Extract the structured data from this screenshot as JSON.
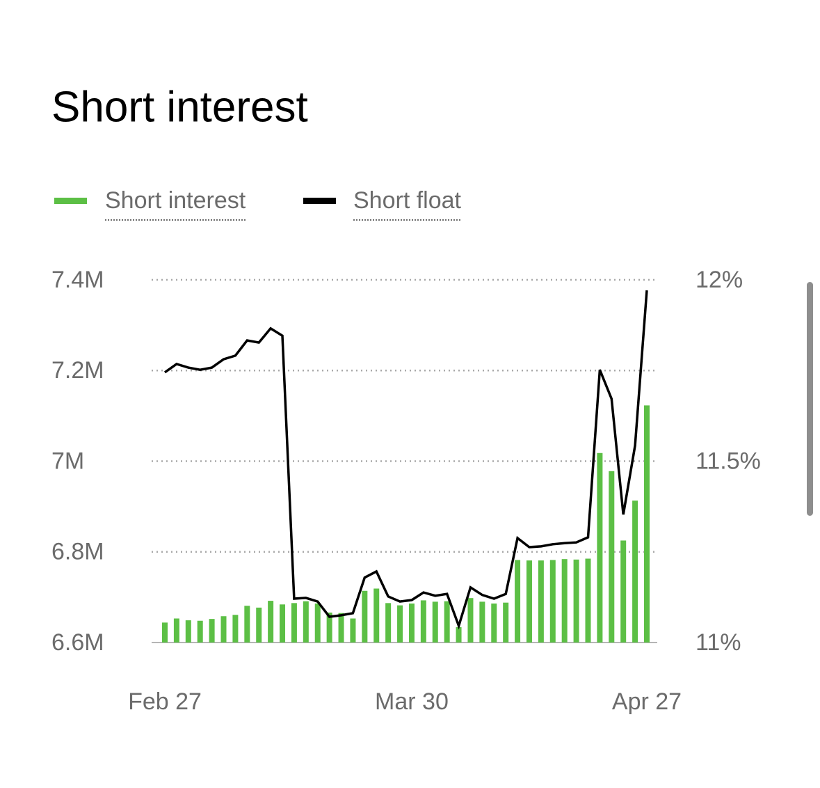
{
  "chart_data": {
    "type": "bar",
    "title": "Short interest",
    "categories": [
      "Feb 27",
      null,
      null,
      null,
      null,
      null,
      null,
      null,
      null,
      null,
      null,
      null,
      null,
      null,
      null,
      null,
      null,
      null,
      null,
      null,
      null,
      "Mar 30",
      null,
      null,
      null,
      null,
      null,
      null,
      null,
      null,
      null,
      null,
      null,
      null,
      null,
      null,
      null,
      null,
      null,
      null,
      null,
      "Apr 27"
    ],
    "series": [
      {
        "name": "Short interest",
        "type": "bar",
        "color": "#5cbf45",
        "values": [
          6644000,
          6653000,
          6649000,
          6648000,
          6652000,
          6658000,
          6661000,
          6681000,
          6677000,
          6692000,
          6684000,
          6687000,
          6691000,
          6686000,
          6666000,
          6665000,
          6653000,
          6714000,
          6719000,
          6687000,
          6682000,
          6686000,
          6693000,
          6690000,
          6691000,
          6634000,
          6698000,
          6690000,
          6686000,
          6688000,
          6782000,
          6781000,
          6781000,
          6782000,
          6784000,
          6783000,
          6785000,
          7018000,
          6978000,
          6825000,
          6913000,
          7123000
        ]
      },
      {
        "name": "Short float",
        "type": "line",
        "color": "#000000",
        "axis": "y2",
        "values": [
          11.745,
          11.768,
          11.758,
          11.752,
          11.758,
          11.781,
          11.791,
          11.833,
          11.827,
          11.866,
          11.846,
          11.121,
          11.123,
          11.113,
          11.071,
          11.075,
          11.081,
          11.179,
          11.196,
          11.127,
          11.113,
          11.117,
          11.138,
          11.129,
          11.134,
          11.046,
          11.152,
          11.131,
          11.121,
          11.134,
          11.288,
          11.263,
          11.265,
          11.271,
          11.274,
          11.276,
          11.29,
          11.752,
          11.672,
          11.353,
          11.543,
          11.971
        ]
      }
    ],
    "ylim": [
      6600000,
      7400000
    ],
    "yticks": [
      {
        "value": 6600000,
        "label": "6.6M"
      },
      {
        "value": 6800000,
        "label": "6.8M"
      },
      {
        "value": 7000000,
        "label": "7M"
      },
      {
        "value": 7200000,
        "label": "7.2M"
      },
      {
        "value": 7400000,
        "label": "7.4M"
      }
    ],
    "y2lim": [
      11,
      12
    ],
    "y2ticks": [
      {
        "value": 11,
        "label": "11%"
      },
      {
        "value": 11.5,
        "label": "11.5%"
      },
      {
        "value": 12,
        "label": "12%"
      }
    ],
    "grid": true
  }
}
